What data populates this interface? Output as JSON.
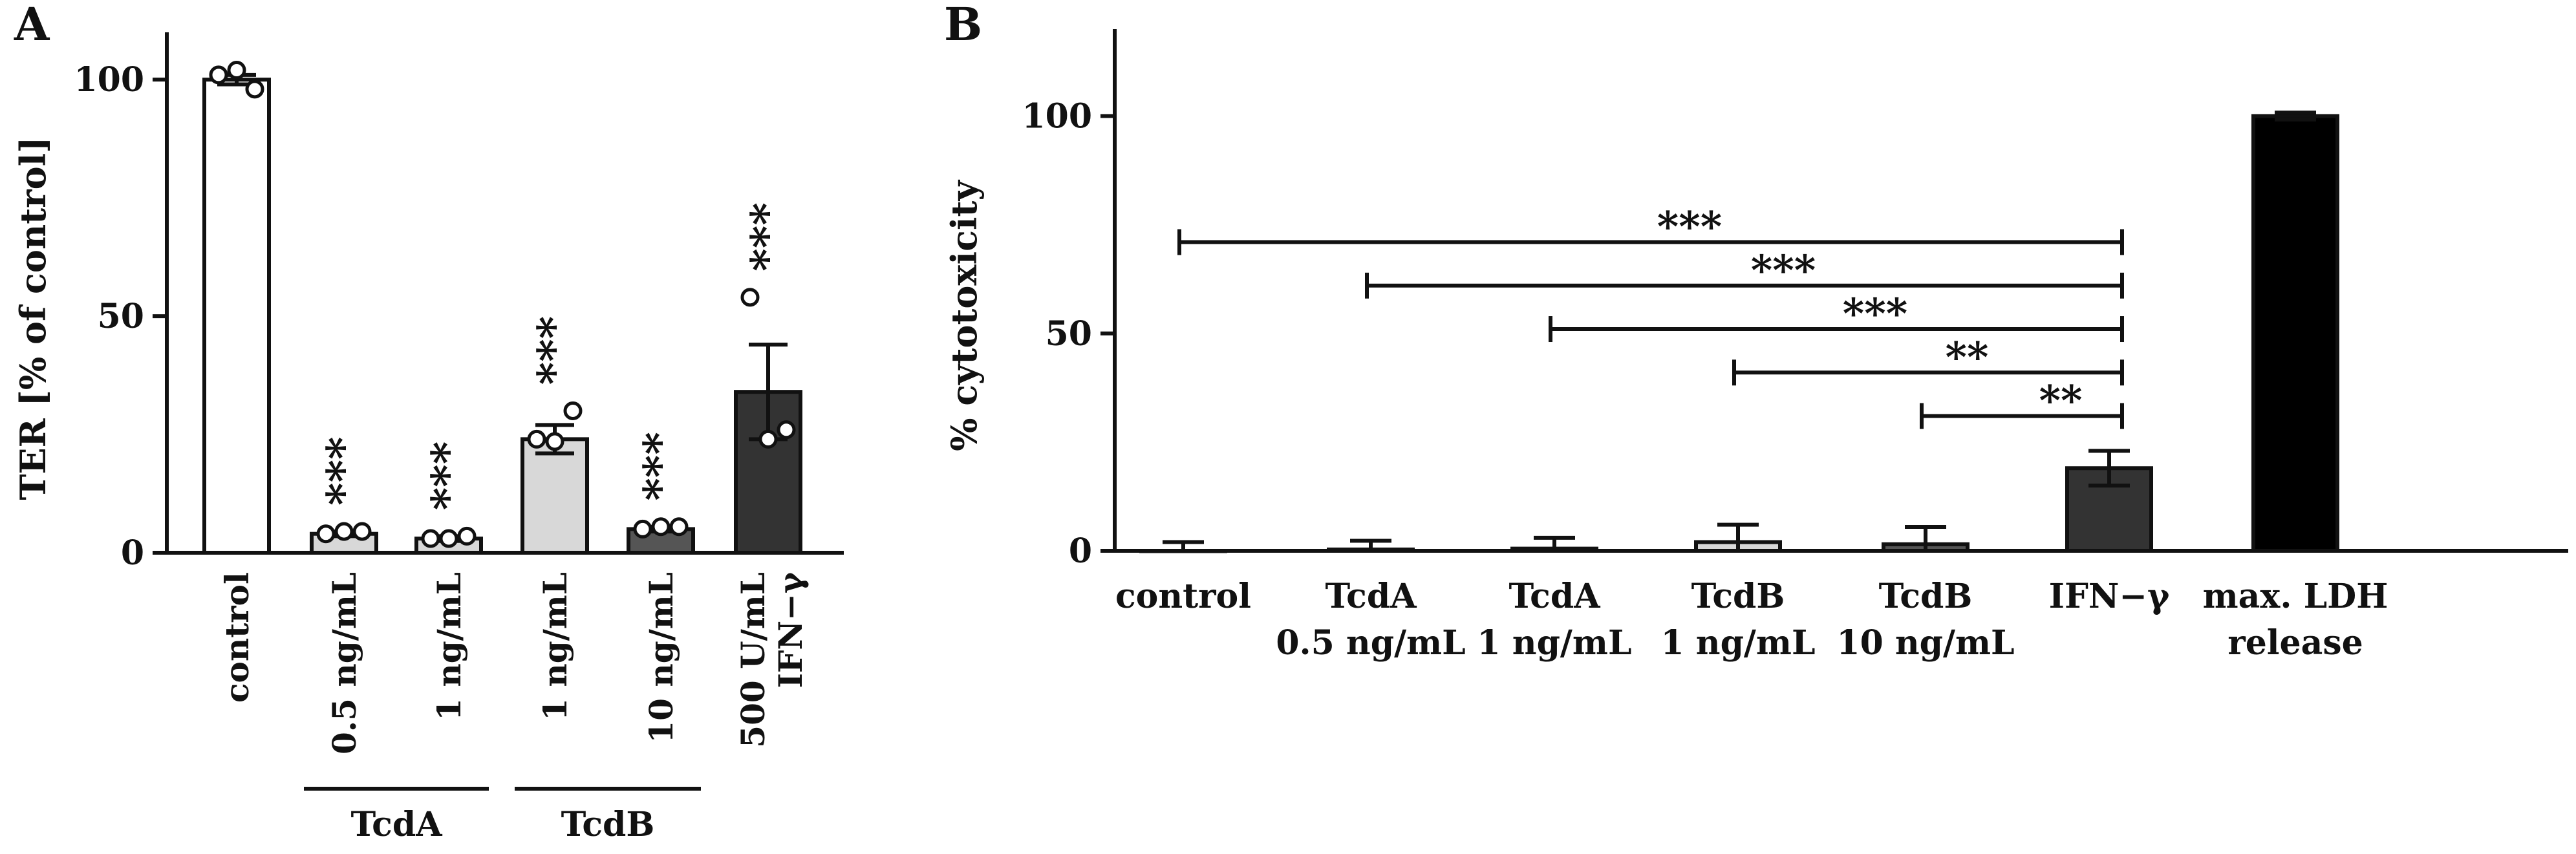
{
  "chart_data": [
    {
      "panel": "A",
      "type": "bar",
      "ylabel": "TER [% of control]",
      "ylim": [
        0,
        110
      ],
      "yticks": [
        0,
        50,
        100
      ],
      "categories": [
        "control",
        "0.5 ng/mL",
        "1 ng/mL",
        "1 ng/mL",
        "10 ng/mL",
        "500 U/mL IFN−γ"
      ],
      "groups": [
        {
          "label": "TcdA",
          "categories": [
            1,
            2
          ]
        },
        {
          "label": "TcdB",
          "categories": [
            3,
            4
          ]
        }
      ],
      "values": [
        100,
        4,
        3,
        24,
        5,
        34
      ],
      "errors": [
        1,
        0.5,
        0.5,
        3,
        0.5,
        10
      ],
      "colors": [
        "#ffffff",
        "#d8d8d8",
        "#d8d8d8",
        "#d8d8d8",
        "#555555",
        "#333333"
      ],
      "points": [
        [
          101,
          102,
          98
        ],
        [
          4,
          4.5,
          4.5
        ],
        [
          3,
          3,
          3.5
        ],
        [
          24,
          23.5,
          30
        ],
        [
          5,
          5.5,
          5.5
        ],
        [
          54,
          24,
          26
        ]
      ],
      "significance": [
        "",
        "***",
        "***",
        "***",
        "***",
        "***"
      ]
    },
    {
      "panel": "B",
      "type": "bar",
      "ylabel": "% cytotoxicity",
      "ylim": [
        0,
        120
      ],
      "yticks": [
        0,
        50,
        100
      ],
      "categories": [
        [
          "control"
        ],
        [
          "TcdA",
          "0.5 ng/mL"
        ],
        [
          "TcdA",
          "1 ng/mL"
        ],
        [
          "TcdB",
          "1 ng/mL"
        ],
        [
          "TcdB",
          "10 ng/mL"
        ],
        [
          "IFN−γ"
        ],
        [
          "max. LDH",
          "release"
        ]
      ],
      "values": [
        0,
        0.3,
        0.5,
        2,
        1.5,
        19,
        100
      ],
      "errors": [
        2,
        2,
        2.5,
        4,
        4,
        4,
        0.8
      ],
      "colors": [
        "#ffffff",
        "#d8d8d8",
        "#d8d8d8",
        "#d8d8d8",
        "#555555",
        "#333333",
        "#000000"
      ],
      "comparisons": [
        {
          "from": 0,
          "to": 5,
          "y": 71,
          "label": "***"
        },
        {
          "from": 1,
          "to": 5,
          "y": 61,
          "label": "***"
        },
        {
          "from": 2,
          "to": 5,
          "y": 51,
          "label": "***"
        },
        {
          "from": 3,
          "to": 5,
          "y": 41,
          "label": "**"
        },
        {
          "from": 4,
          "to": 5,
          "y": 31,
          "label": "**"
        }
      ]
    }
  ]
}
